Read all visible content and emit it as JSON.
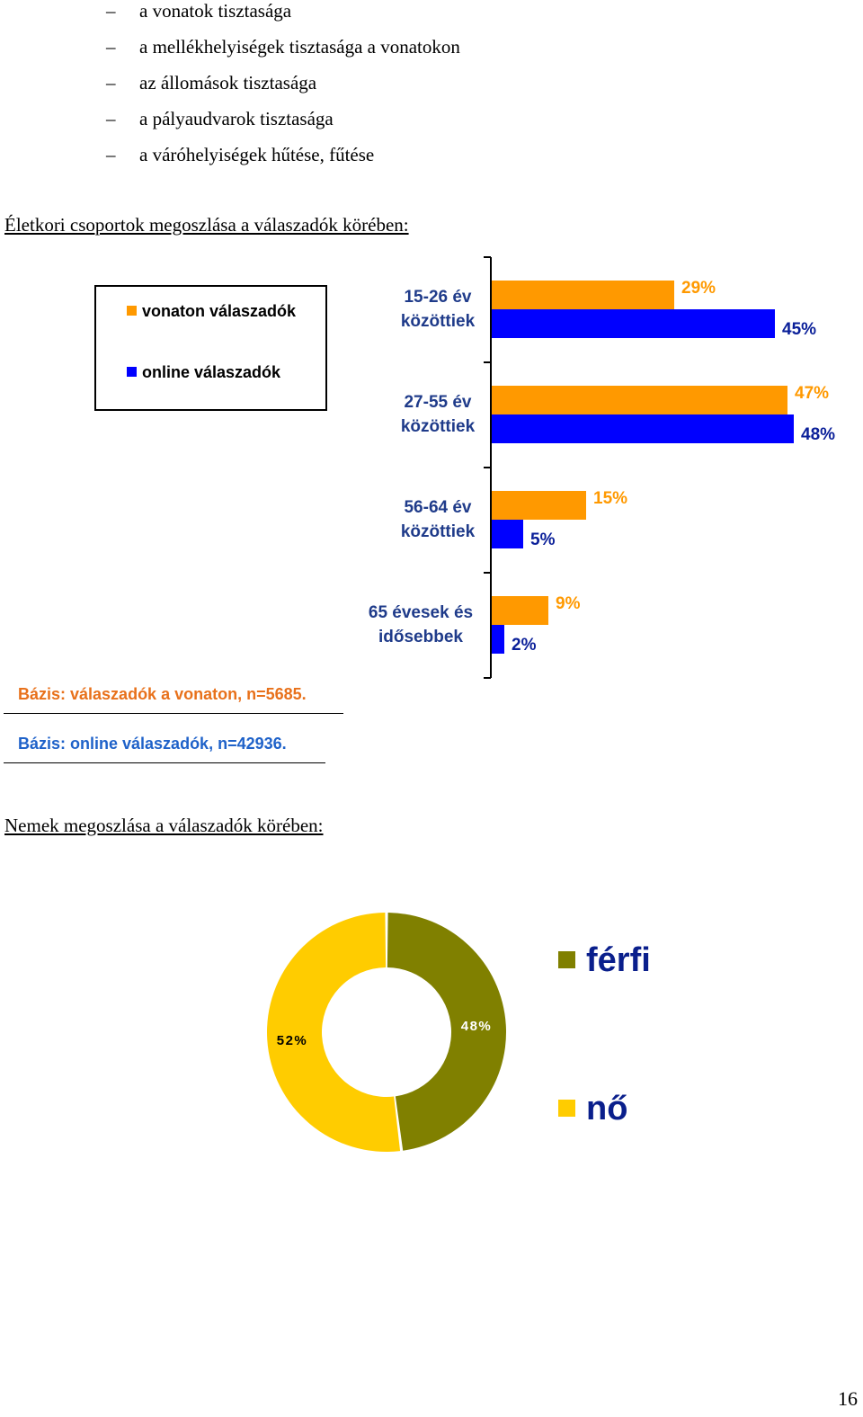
{
  "bullets": [
    {
      "dash": "–",
      "text": "a vonatok tisztasága"
    },
    {
      "dash": "–",
      "text": "a mellékhelyiségek tisztasága a vonatokon"
    },
    {
      "dash": "–",
      "text": "az állomások tisztasága"
    },
    {
      "dash": "–",
      "text": "a pályaudvarok tisztasága"
    },
    {
      "dash": "–",
      "text": "a váróhelyiségek hűtése, fűtése"
    }
  ],
  "age_heading": "Életkori csoportok megoszlása a válaszadók körében:",
  "gender_heading": "Nemek megoszlása a válaszadók körében:",
  "base_train": "Bázis: válaszadók a vonaton, n=5685.",
  "base_online": "Bázis: online válaszadók, n=42936.",
  "page_number": "16",
  "colors": {
    "orange": "#ff9900",
    "blue": "#0000ff",
    "orange_text": "#ff9900",
    "blue_text": "#0a1f99",
    "category_text": "#1f3b8a",
    "base_train_text": "#e8711b",
    "base_online_text": "#1f62c9",
    "olive": "#808000",
    "yellow": "#ffcc00"
  },
  "chart_data": [
    {
      "type": "bar",
      "orientation": "horizontal",
      "categories": [
        [
          "15-26 év",
          "közöttiek"
        ],
        [
          "27-55 év",
          "közöttiek"
        ],
        [
          "56-64 év",
          "közöttiek"
        ],
        [
          "65 évesek és",
          "idősebbek"
        ]
      ],
      "series": [
        {
          "name": "vonaton válaszadók",
          "values": [
            29,
            47,
            15,
            9
          ],
          "labels": [
            "29%",
            "47%",
            "15%",
            "9%"
          ],
          "color": "#ff9900"
        },
        {
          "name": "online válaszadók",
          "values": [
            45,
            48,
            5,
            2
          ],
          "labels": [
            "45%",
            "48%",
            "5%",
            "2%"
          ],
          "color": "#0000ff"
        }
      ],
      "unit": "%",
      "legend_position": "top-left",
      "grid": false
    },
    {
      "type": "pie",
      "style": "donut",
      "slices": [
        {
          "name": "férfi",
          "value": 48,
          "label": "48%",
          "color": "#808000"
        },
        {
          "name": "nő",
          "value": 52,
          "label": "52%",
          "color": "#ffcc00"
        }
      ],
      "legend_position": "right"
    }
  ]
}
